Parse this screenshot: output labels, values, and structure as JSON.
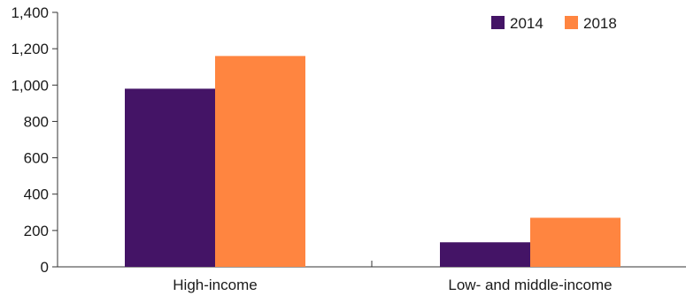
{
  "chart_data": {
    "type": "bar",
    "title": "",
    "xlabel": "",
    "ylabel": "",
    "categories": [
      "High-income",
      "Low- and middle-income"
    ],
    "series": [
      {
        "name": "2014",
        "color": "#441466",
        "values": [
          980,
          135
        ]
      },
      {
        "name": "2018",
        "color": "#ff8540",
        "values": [
          1160,
          270
        ]
      }
    ],
    "ylim": [
      0,
      1400
    ],
    "yticks": [
      0,
      200,
      400,
      600,
      800,
      1000,
      1200,
      1400
    ],
    "ytick_labels": [
      "0",
      "200",
      "400",
      "600",
      "800",
      "1,000",
      "1,200",
      "1,400"
    ],
    "legend_position": "top-right",
    "grid": false
  }
}
